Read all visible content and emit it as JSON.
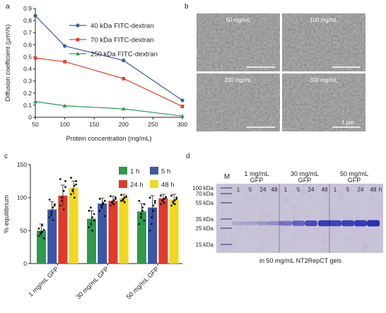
{
  "panels": {
    "a": {
      "label": "a",
      "chart_data": {
        "type": "line",
        "xlabel": "Protein concentration (mg/mL)",
        "ylabel": "Diffusion coefficient (µm²/s)",
        "xlim": [
          50,
          300
        ],
        "ylim": [
          0,
          0.9
        ],
        "xticks": [
          "50",
          "100",
          "150",
          "200",
          "250",
          "300"
        ],
        "yticks": [
          "0",
          "0.1",
          "0.2",
          "0.3",
          "0.4",
          "0.5",
          "0.6",
          "0.7",
          "0.8",
          "0.9"
        ],
        "legend_position": "top-right",
        "series": [
          {
            "name": "40 kDa FITC-dextran",
            "color": "#3a5ba9",
            "marker": "circle",
            "x": [
              50,
              100,
              200,
              300
            ],
            "y": [
              0.84,
              0.59,
              0.47,
              0.14
            ]
          },
          {
            "name": "70 kDa FITC-dextran",
            "color": "#e2402b",
            "marker": "square",
            "x": [
              50,
              100,
              200,
              300
            ],
            "y": [
              0.49,
              0.46,
              0.32,
              0.09
            ]
          },
          {
            "name": "250 kDa FITC-dextran",
            "color": "#2e9a5b",
            "marker": "triangle",
            "x": [
              50,
              100,
              200,
              300
            ],
            "y": [
              0.13,
              0.095,
              0.07,
              0.01
            ]
          }
        ]
      }
    },
    "b": {
      "label": "b",
      "images": [
        "50 mg/mL",
        "100 mg/mL",
        "200 mg/mL",
        "300 mg/mL"
      ],
      "scale_bar": "1 µm"
    },
    "c": {
      "label": "c",
      "chart_data": {
        "type": "bar",
        "ylabel": "% equilibrium",
        "ylim": [
          0,
          150
        ],
        "yticks": [
          "0",
          "50",
          "100",
          "150"
        ],
        "categories": [
          "1 mg/mL GFP",
          "30 mg/mL GFP",
          "50 mg/mL GFP"
        ],
        "legend_position": "top-right",
        "series": [
          {
            "name": "1 h",
            "color": "#2e9a4a",
            "values": [
              50,
              68,
              79
            ],
            "err": [
              10,
              12,
              12
            ]
          },
          {
            "name": "5 h",
            "color": "#3b57a6",
            "values": [
              82,
              91,
              85
            ],
            "err": [
              12,
              8,
              18
            ]
          },
          {
            "name": "24 h",
            "color": "#e03a2a",
            "values": [
              103,
              95,
              99
            ],
            "err": [
              16,
              7,
              6
            ]
          },
          {
            "name": "48 h",
            "color": "#f2d81e",
            "values": [
              115,
              99,
              97
            ],
            "err": [
              10,
              6,
              8
            ]
          }
        ],
        "points": [
          [
            [
              42,
              45,
              48,
              51,
              53,
              47,
              58,
              38
            ],
            [
              70,
              78,
              85,
              90,
              97,
              74,
              66,
              88
            ],
            [
              88,
              95,
              110,
              125,
              128,
              100,
              82,
              116
            ],
            [
              105,
              112,
              118,
              125,
              130,
              110,
              100,
              120
            ]
          ],
          [
            [
              55,
              60,
              70,
              75,
              80,
              85,
              50,
              65
            ],
            [
              80,
              85,
              90,
              95,
              98,
              88,
              92,
              72
            ],
            [
              88,
              92,
              96,
              100,
              102,
              94,
              90,
              98
            ],
            [
              95,
              98,
              100,
              102,
              104,
              96,
              93,
              101
            ]
          ],
          [
            [
              60,
              70,
              80,
              90,
              95,
              75,
              85,
              65
            ],
            [
              50,
              60,
              80,
              95,
              100,
              70,
              88,
              92
            ],
            [
              90,
              95,
              98,
              100,
              103,
              96,
              92,
              101
            ],
            [
              88,
              92,
              96,
              100,
              103,
              94,
              90,
              98
            ]
          ]
        ]
      }
    },
    "d": {
      "label": "d",
      "marker_label": "M",
      "ladder": [
        "100 kDa",
        "70 kDa",
        "55 kDa",
        "35 kDa",
        "25 kDa",
        "15 kDa"
      ],
      "groups": [
        {
          "name": "1 mg/mL\nGFP",
          "line1": "1 mg/mL",
          "line2": "GFP",
          "lanes": [
            "1",
            "5",
            "24",
            "48"
          ],
          "intensity": [
            0.05,
            0.08,
            0.15,
            0.22
          ]
        },
        {
          "name": "30 mg/mL GFP",
          "line1": "30 mg/mL",
          "line2": "GFP",
          "lanes": [
            "1",
            "5",
            "24",
            "48"
          ],
          "intensity": [
            0.45,
            0.6,
            0.78,
            0.9
          ]
        },
        {
          "name": "50 mg/mL GFP",
          "line1": "50 mg/mL",
          "line2": "GFP",
          "lanes": [
            "1",
            "5",
            "24",
            "48"
          ],
          "intensity": [
            0.85,
            0.88,
            0.92,
            1.0
          ]
        }
      ],
      "unit": "h",
      "caption": "in 50 mg/mL NT2RepCT gels"
    }
  }
}
